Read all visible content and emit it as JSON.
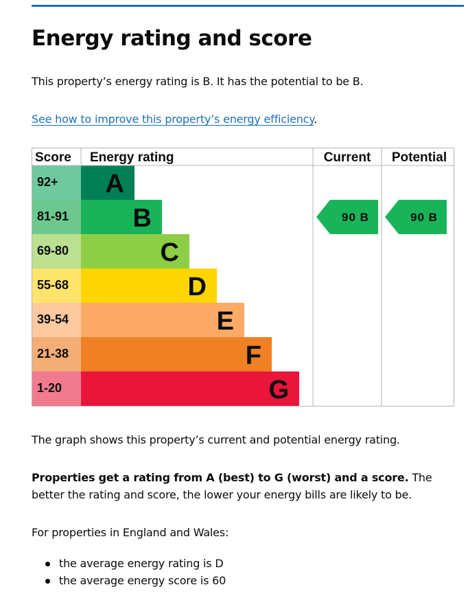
{
  "page": {
    "title": "Energy rating and score",
    "intro": "This property’s energy rating is B. It has the potential to be B.",
    "improve_link": "See how to improve this property’s energy efficiency",
    "improve_suffix": ".",
    "graph_explanation": "The graph shows this property’s current and potential energy rating.",
    "ratings_bold": "Properties get a rating from A (best) to G (worst) and a score.",
    "ratings_rest": " The better the rating and score, the lower your energy bills are likely to be.",
    "england_intro": "For properties in England and Wales:",
    "averages": [
      "the average energy rating is D",
      "the average energy score is 60"
    ]
  },
  "chart_data": {
    "type": "table",
    "columns": [
      "Score",
      "Energy rating",
      "Current",
      "Potential"
    ],
    "bands": [
      {
        "letter": "A",
        "range": "92+",
        "color": "#008054",
        "score_color": "#6ec99f"
      },
      {
        "letter": "B",
        "range": "81-91",
        "color": "#19b459",
        "score_color": "#6dc88e"
      },
      {
        "letter": "C",
        "range": "69-80",
        "color": "#8dce46",
        "score_color": "#bbe08f"
      },
      {
        "letter": "D",
        "range": "55-68",
        "color": "#ffd500",
        "score_color": "#ffe46b"
      },
      {
        "letter": "E",
        "range": "39-54",
        "color": "#fcaa65",
        "score_color": "#fdc9a0"
      },
      {
        "letter": "F",
        "range": "21-38",
        "color": "#ef8023",
        "score_color": "#f4ad75"
      },
      {
        "letter": "G",
        "range": "1-20",
        "color": "#e9153b",
        "score_color": "#f27a8f"
      }
    ],
    "current": {
      "score": 90,
      "letter": "B",
      "label": "90 B"
    },
    "potential": {
      "score": 90,
      "letter": "B",
      "label": "90 B"
    }
  }
}
